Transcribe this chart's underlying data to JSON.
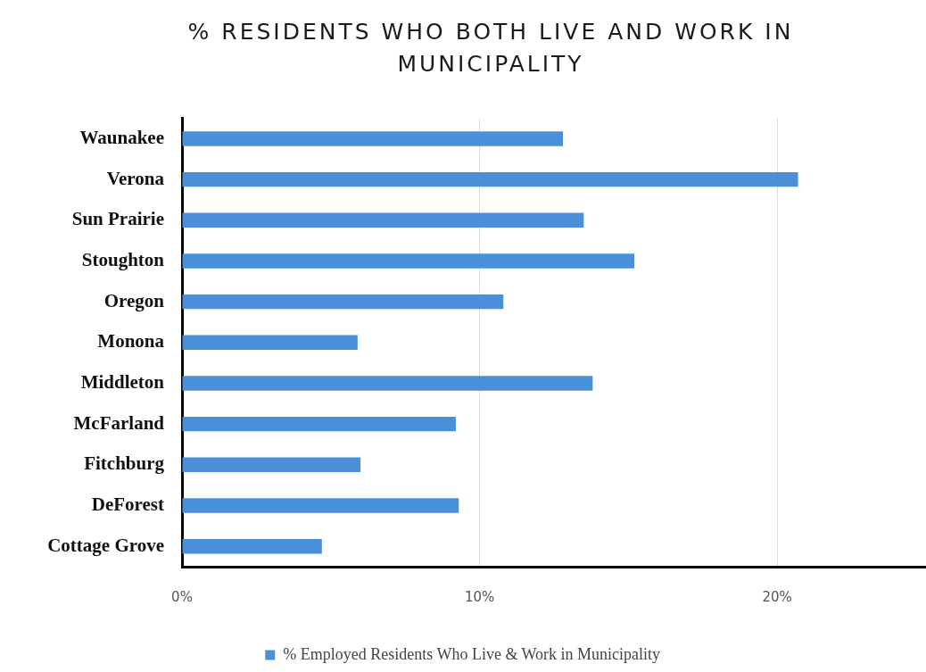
{
  "chart_data": {
    "type": "bar",
    "orientation": "horizontal",
    "title": "% RESIDENTS WHO BOTH LIVE AND WORK IN MUNICIPALITY",
    "categories": [
      "Waunakee",
      "Verona",
      "Sun Prairie",
      "Stoughton",
      "Oregon",
      "Monona",
      "Middleton",
      "McFarland",
      "Fitchburg",
      "DeForest",
      "Cottage Grove"
    ],
    "series": [
      {
        "name": "% Employed Residents Who Live & Work in Municipality",
        "color": "#4a8fd9",
        "values": [
          12.8,
          20.7,
          13.5,
          15.2,
          10.8,
          5.9,
          13.8,
          9.2,
          6.0,
          9.3,
          4.7
        ]
      }
    ],
    "xlim": [
      0,
      25
    ],
    "xticks": [
      {
        "value": 0,
        "label": "0%"
      },
      {
        "value": 10,
        "label": "10%"
      },
      {
        "value": 20,
        "label": "20%"
      }
    ],
    "grid": "x",
    "legend": "bottom"
  }
}
